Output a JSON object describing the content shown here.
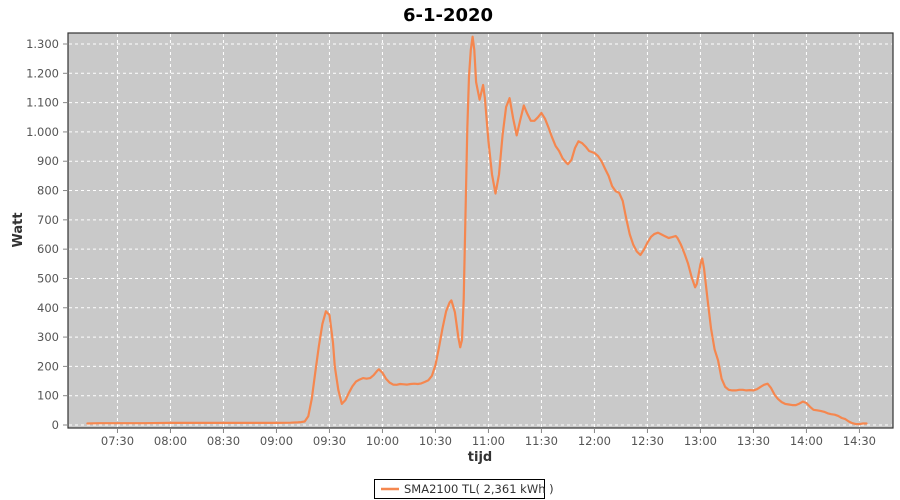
{
  "chart_data": {
    "type": "line",
    "title": "6-1-2020",
    "xlabel": "tijd",
    "ylabel": "Watt",
    "plot_bg_color": "#c9c9c9",
    "grid_color": "#ffffff",
    "grid_style": "dashed",
    "border_color": "#333333",
    "x_axis": {
      "start": "07:02",
      "end": "14:49",
      "tick_labels": [
        "07:30",
        "08:00",
        "08:30",
        "09:00",
        "09:30",
        "10:00",
        "10:30",
        "11:00",
        "11:30",
        "12:00",
        "12:30",
        "13:00",
        "13:30",
        "14:00",
        "14:30"
      ]
    },
    "y_axis": {
      "min": 0,
      "max": 1300,
      "tick_values": [
        0,
        100,
        200,
        300,
        400,
        500,
        600,
        700,
        800,
        900,
        1000,
        1100,
        1200,
        1300
      ],
      "tick_labels": [
        "0",
        "100",
        "200",
        "300",
        "400",
        "500",
        "600",
        "700",
        "800",
        "900",
        "1.000",
        "1.100",
        "1.200",
        "1.300"
      ]
    },
    "legend": {
      "position": "bottom-center",
      "entries": [
        {
          "label": "SMA2100 TL( 2,361 kWh )",
          "color": "#f5874f"
        }
      ]
    },
    "series": [
      {
        "name": "SMA2100 TL( 2,361 kWh )",
        "color": "#f5874f",
        "points": [
          [
            "07:13",
            5
          ],
          [
            "07:20",
            6
          ],
          [
            "07:30",
            6
          ],
          [
            "07:45",
            6
          ],
          [
            "08:00",
            7
          ],
          [
            "08:15",
            7
          ],
          [
            "08:30",
            7
          ],
          [
            "08:45",
            7
          ],
          [
            "09:00",
            7
          ],
          [
            "09:08",
            8
          ],
          [
            "09:12",
            9
          ],
          [
            "09:14",
            10
          ],
          [
            "09:16",
            12
          ],
          [
            "09:18",
            30
          ],
          [
            "09:20",
            90
          ],
          [
            "09:22",
            180
          ],
          [
            "09:24",
            270
          ],
          [
            "09:26",
            345
          ],
          [
            "09:28",
            388
          ],
          [
            "09:30",
            375
          ],
          [
            "09:32",
            280
          ],
          [
            "09:33",
            200
          ],
          [
            "09:35",
            120
          ],
          [
            "09:37",
            72
          ],
          [
            "09:39",
            85
          ],
          [
            "09:41",
            110
          ],
          [
            "09:43",
            132
          ],
          [
            "09:45",
            148
          ],
          [
            "09:47",
            155
          ],
          [
            "09:49",
            160
          ],
          [
            "09:51",
            158
          ],
          [
            "09:53",
            160
          ],
          [
            "09:55",
            170
          ],
          [
            "09:57",
            185
          ],
          [
            "09:58",
            190
          ],
          [
            "10:00",
            178
          ],
          [
            "10:02",
            158
          ],
          [
            "10:04",
            145
          ],
          [
            "10:06",
            138
          ],
          [
            "10:08",
            137
          ],
          [
            "10:10",
            140
          ],
          [
            "10:12",
            139
          ],
          [
            "10:14",
            138
          ],
          [
            "10:16",
            140
          ],
          [
            "10:18",
            141
          ],
          [
            "10:20",
            140
          ],
          [
            "10:22",
            142
          ],
          [
            "10:24",
            147
          ],
          [
            "10:26",
            153
          ],
          [
            "10:28",
            168
          ],
          [
            "10:30",
            205
          ],
          [
            "10:32",
            265
          ],
          [
            "10:34",
            330
          ],
          [
            "10:36",
            388
          ],
          [
            "10:38",
            418
          ],
          [
            "10:39",
            425
          ],
          [
            "10:41",
            385
          ],
          [
            "10:43",
            298
          ],
          [
            "10:44",
            265
          ],
          [
            "10:45",
            290
          ],
          [
            "10:46",
            430
          ],
          [
            "10:47",
            720
          ],
          [
            "10:48",
            1010
          ],
          [
            "10:49",
            1190
          ],
          [
            "10:50",
            1280
          ],
          [
            "10:51",
            1325
          ],
          [
            "10:52",
            1280
          ],
          [
            "10:53",
            1170
          ],
          [
            "10:55",
            1110
          ],
          [
            "10:57",
            1160
          ],
          [
            "10:58",
            1115
          ],
          [
            "11:00",
            970
          ],
          [
            "11:02",
            855
          ],
          [
            "11:04",
            790
          ],
          [
            "11:06",
            855
          ],
          [
            "11:08",
            990
          ],
          [
            "11:10",
            1085
          ],
          [
            "11:12",
            1115
          ],
          [
            "11:14",
            1045
          ],
          [
            "11:16",
            988
          ],
          [
            "11:18",
            1040
          ],
          [
            "11:20",
            1090
          ],
          [
            "11:22",
            1062
          ],
          [
            "11:24",
            1038
          ],
          [
            "11:26",
            1038
          ],
          [
            "11:28",
            1050
          ],
          [
            "11:30",
            1065
          ],
          [
            "11:32",
            1045
          ],
          [
            "11:34",
            1015
          ],
          [
            "11:36",
            982
          ],
          [
            "11:38",
            952
          ],
          [
            "11:40",
            935
          ],
          [
            "11:42",
            910
          ],
          [
            "11:44",
            895
          ],
          [
            "11:45",
            890
          ],
          [
            "11:47",
            905
          ],
          [
            "11:49",
            945
          ],
          [
            "11:51",
            968
          ],
          [
            "11:53",
            962
          ],
          [
            "11:55",
            950
          ],
          [
            "11:57",
            935
          ],
          [
            "12:00",
            928
          ],
          [
            "12:02",
            918
          ],
          [
            "12:04",
            900
          ],
          [
            "12:06",
            875
          ],
          [
            "12:08",
            850
          ],
          [
            "12:10",
            815
          ],
          [
            "12:12",
            798
          ],
          [
            "12:14",
            792
          ],
          [
            "12:16",
            765
          ],
          [
            "12:18",
            705
          ],
          [
            "12:20",
            650
          ],
          [
            "12:22",
            615
          ],
          [
            "12:24",
            592
          ],
          [
            "12:26",
            580
          ],
          [
            "12:28",
            598
          ],
          [
            "12:30",
            622
          ],
          [
            "12:32",
            642
          ],
          [
            "12:34",
            652
          ],
          [
            "12:36",
            656
          ],
          [
            "12:38",
            650
          ],
          [
            "12:40",
            644
          ],
          [
            "12:42",
            638
          ],
          [
            "12:44",
            641
          ],
          [
            "12:46",
            645
          ],
          [
            "12:47",
            638
          ],
          [
            "12:49",
            615
          ],
          [
            "12:51",
            585
          ],
          [
            "12:53",
            550
          ],
          [
            "12:55",
            505
          ],
          [
            "12:57",
            470
          ],
          [
            "12:58",
            482
          ],
          [
            "13:00",
            548
          ],
          [
            "13:01",
            568
          ],
          [
            "13:02",
            535
          ],
          [
            "13:04",
            430
          ],
          [
            "13:06",
            330
          ],
          [
            "13:08",
            258
          ],
          [
            "13:10",
            220
          ],
          [
            "13:12",
            158
          ],
          [
            "13:14",
            130
          ],
          [
            "13:16",
            120
          ],
          [
            "13:18",
            118
          ],
          [
            "13:20",
            118
          ],
          [
            "13:22",
            120
          ],
          [
            "13:24",
            120
          ],
          [
            "13:26",
            118
          ],
          [
            "13:28",
            119
          ],
          [
            "13:30",
            118
          ],
          [
            "13:32",
            122
          ],
          [
            "13:34",
            130
          ],
          [
            "13:36",
            137
          ],
          [
            "13:38",
            141
          ],
          [
            "13:40",
            126
          ],
          [
            "13:42",
            103
          ],
          [
            "13:44",
            88
          ],
          [
            "13:46",
            78
          ],
          [
            "13:48",
            72
          ],
          [
            "13:50",
            70
          ],
          [
            "13:52",
            68
          ],
          [
            "13:54",
            68
          ],
          [
            "13:56",
            73
          ],
          [
            "13:58",
            80
          ],
          [
            "14:00",
            75
          ],
          [
            "14:02",
            62
          ],
          [
            "14:04",
            52
          ],
          [
            "14:06",
            50
          ],
          [
            "14:08",
            48
          ],
          [
            "14:10",
            45
          ],
          [
            "14:12",
            40
          ],
          [
            "14:14",
            37
          ],
          [
            "14:16",
            35
          ],
          [
            "14:18",
            31
          ],
          [
            "14:20",
            24
          ],
          [
            "14:22",
            20
          ],
          [
            "14:24",
            12
          ],
          [
            "14:26",
            6
          ],
          [
            "14:28",
            3
          ],
          [
            "14:30",
            3
          ],
          [
            "14:32",
            5
          ],
          [
            "14:34",
            5
          ]
        ]
      }
    ]
  }
}
